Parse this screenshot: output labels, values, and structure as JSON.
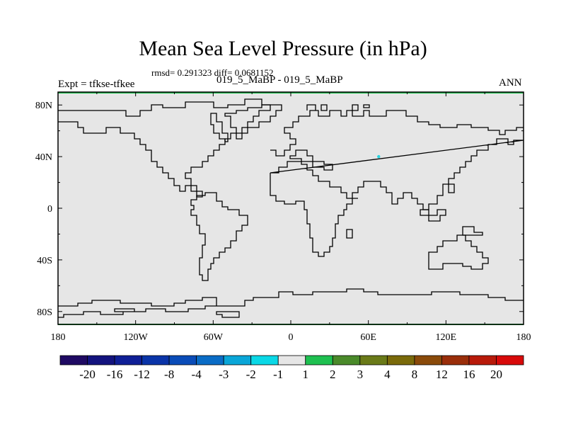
{
  "header": {
    "title": "Mean Sea Level Pressure (in hPa)",
    "stats": "rmsd= 0.291323 diff= 0.0681152",
    "expt": "Expt = tfkse-tfkee",
    "period": "019_5_MaBP - 019_5_MaBP",
    "season": "ANN"
  },
  "map": {
    "projection": "cylindrical equidistant",
    "lon_range": [
      -180,
      180
    ],
    "lat_range": [
      -90,
      90
    ],
    "lon_ticks": [
      -180,
      -120,
      -60,
      0,
      60,
      120,
      180
    ],
    "lon_tick_labels": [
      "180",
      "120W",
      "60W",
      "0",
      "60E",
      "120E",
      "180"
    ],
    "lat_ticks": [
      80,
      40,
      0,
      -40,
      -80
    ],
    "lat_tick_labels": [
      "80N",
      "40N",
      "0",
      "40S",
      "80S"
    ],
    "field_fill_color": "#e6e6e6",
    "coastline_color": "#000000",
    "markers": [
      {
        "lon": 68,
        "lat": 40,
        "color": "#2ad4e0"
      }
    ]
  },
  "colorbar": {
    "colors": [
      "#1f0a63",
      "#13137e",
      "#0f1f96",
      "#0a34a8",
      "#0a4cb8",
      "#0a6cc6",
      "#0aa6d8",
      "#0ad8e6",
      "#e6e6e6",
      "#1ec050",
      "#4a8a2a",
      "#6a7a18",
      "#7a6a0a",
      "#8a4a0a",
      "#9a2e0a",
      "#b81a0a",
      "#d80a0a"
    ],
    "labels": [
      "-20",
      "-16",
      "-12",
      "-8",
      "-4",
      "-3",
      "-2",
      "-1",
      "1",
      "2",
      "3",
      "4",
      "8",
      "12",
      "16",
      "20"
    ]
  }
}
